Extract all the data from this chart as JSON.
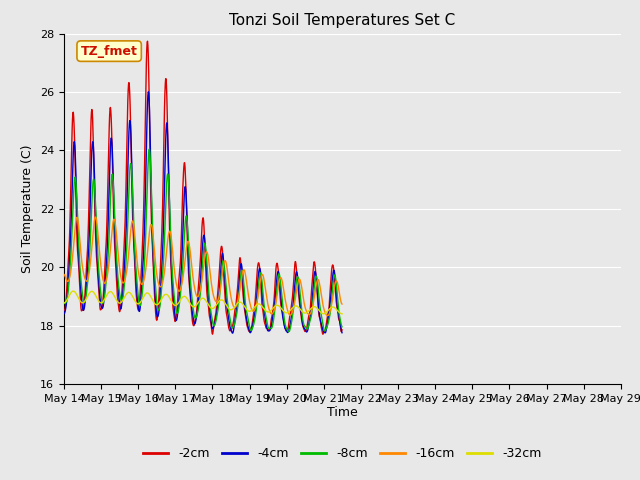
{
  "title": "Tonzi Soil Temperatures Set C",
  "xlabel": "Time",
  "ylabel": "Soil Temperature (C)",
  "ylim": [
    16,
    28
  ],
  "yticks": [
    16,
    18,
    20,
    22,
    24,
    26,
    28
  ],
  "annotation": "TZ_fmet",
  "legend": [
    "-2cm",
    "-4cm",
    "-8cm",
    "-16cm",
    "-32cm"
  ],
  "line_colors": [
    "#dd0000",
    "#0000cc",
    "#00bb00",
    "#ff8800",
    "#dddd00"
  ],
  "background_color": "#e8e8e8",
  "grid_color": "#ffffff",
  "title_fontsize": 11,
  "axis_label_fontsize": 9,
  "tick_fontsize": 8
}
